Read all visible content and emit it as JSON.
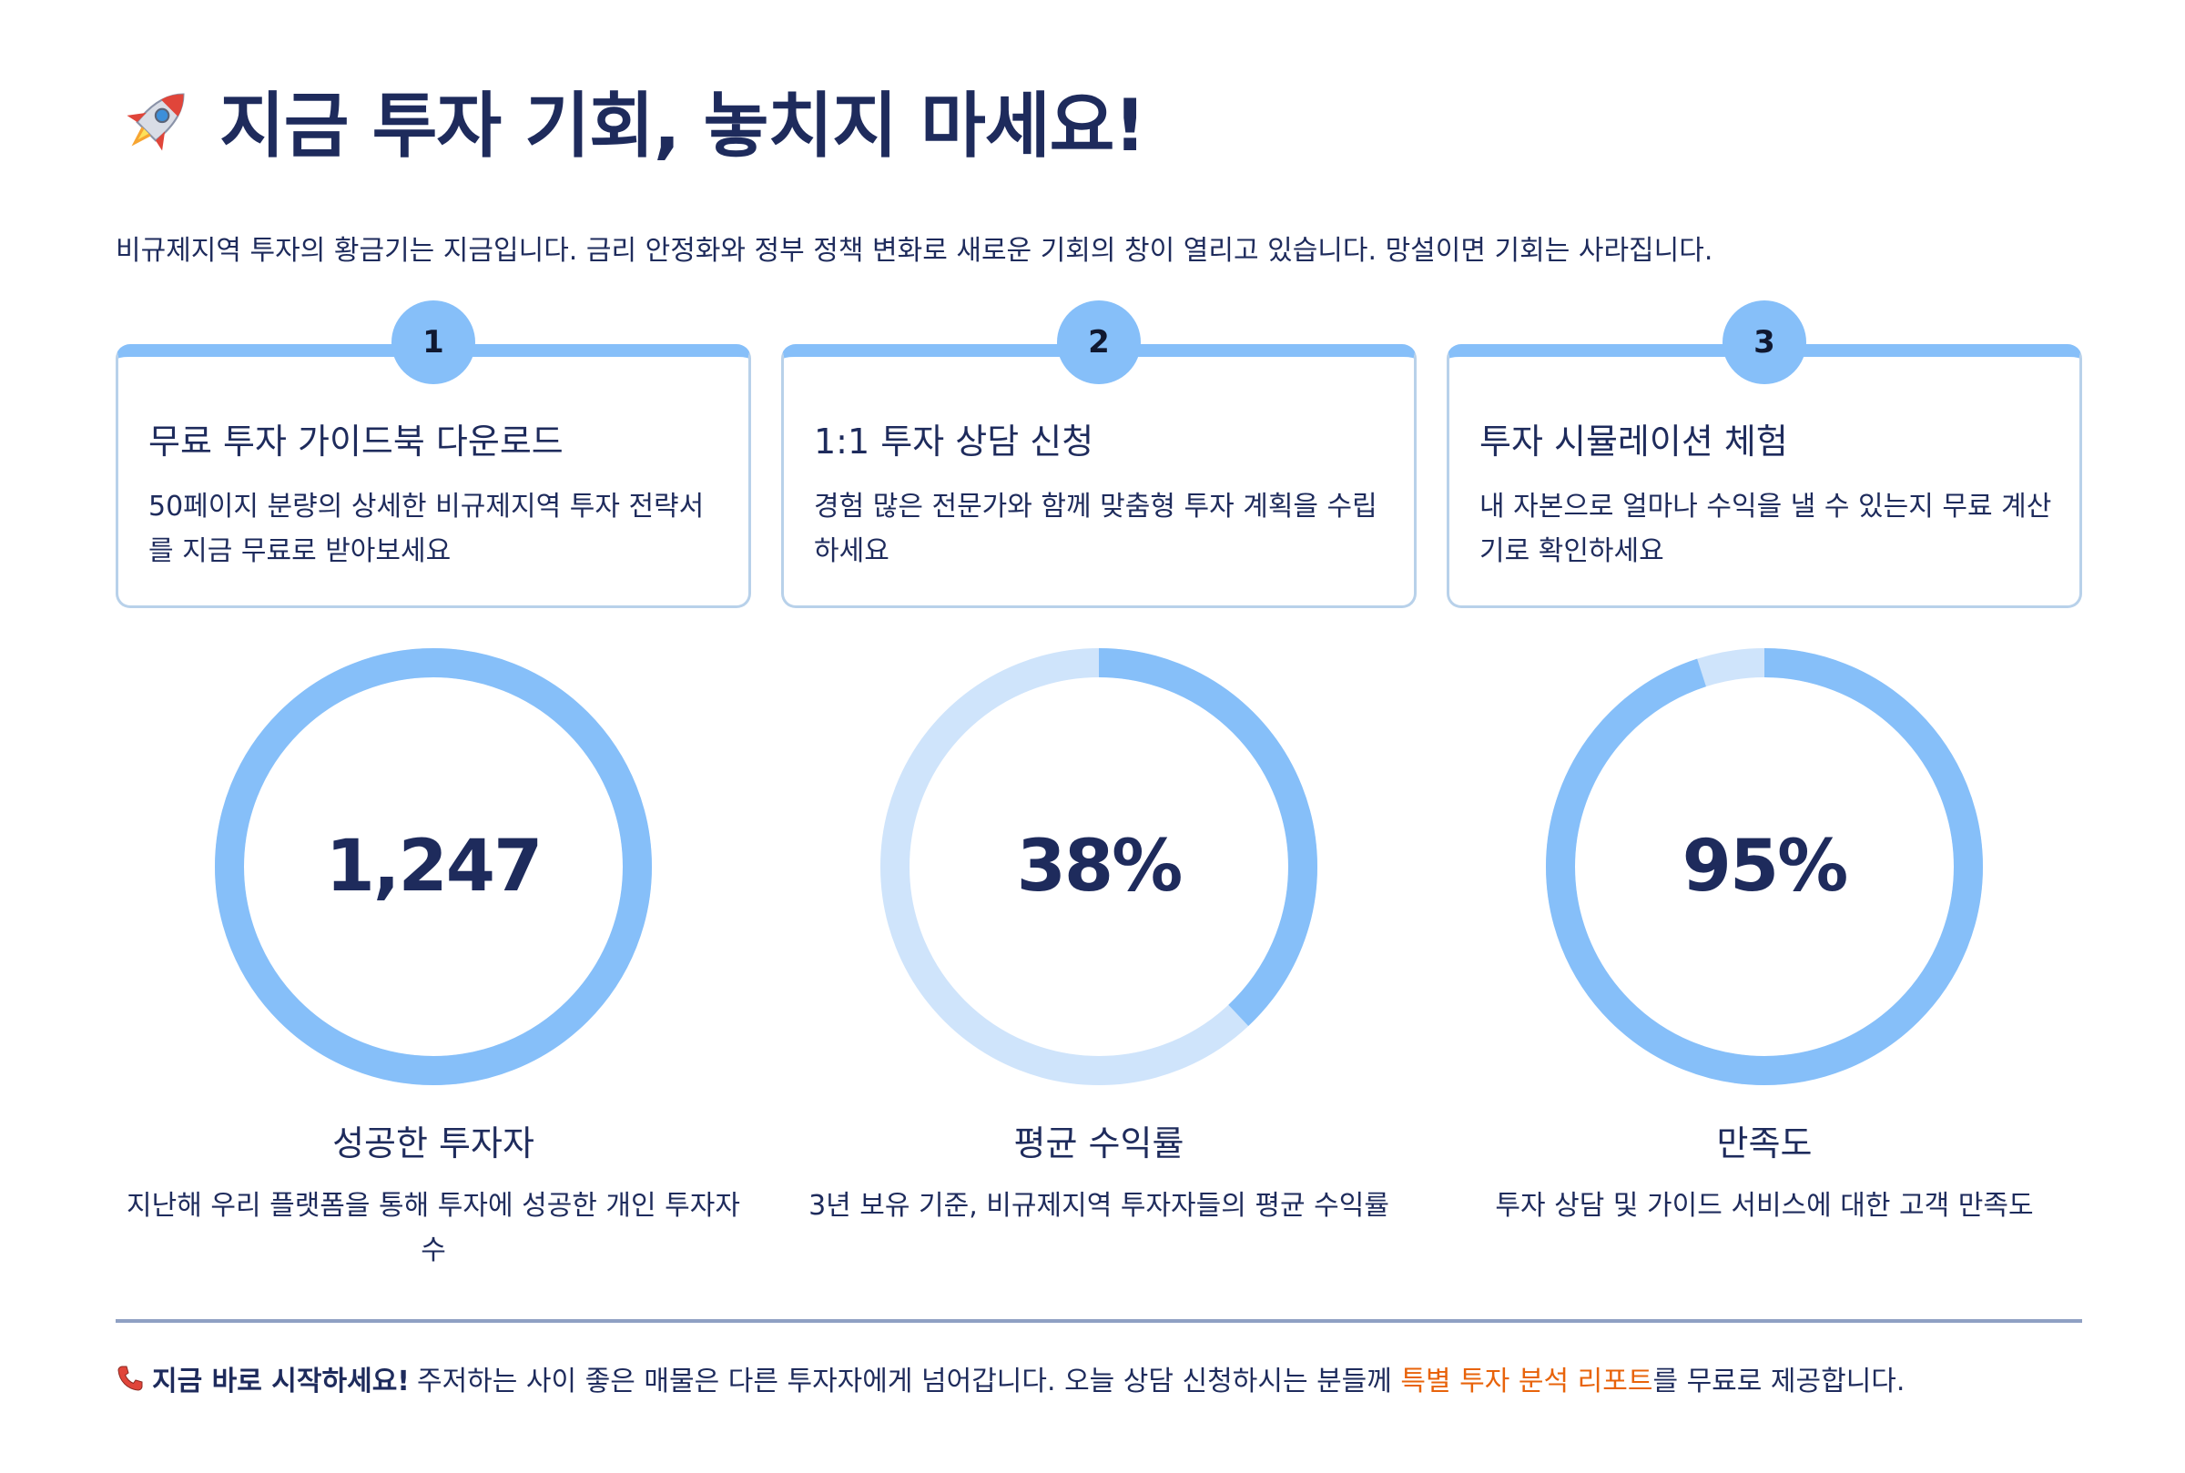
{
  "header": {
    "icon": "rocket-icon",
    "title": "지금 투자 기회, 놓치지 마세요!"
  },
  "intro": "비규제지역 투자의 황금기는 지금입니다. 금리 안정화와 정부 정책 변화로 새로운 기회의 창이 열리고 있습니다. 망설이면 기회는 사라집니다.",
  "steps": [
    {
      "number": "1",
      "title": "무료 투자 가이드북 다운로드",
      "description": "50페이지 분량의 상세한 비규제지역 투자 전략서를 지금 무료로 받아보세요"
    },
    {
      "number": "2",
      "title": "1:1 투자 상담 신청",
      "description": "경험 많은 전문가와 함께 맞춤형 투자 계획을 수립하세요"
    },
    {
      "number": "3",
      "title": "투자 시뮬레이션 체험",
      "description": "내 자본으로 얼마나 수익을 낼 수 있는지 무료 계산기로 확인하세요"
    }
  ],
  "stats": [
    {
      "value": "1,247",
      "fill": 1.0,
      "label": "성공한 투자자",
      "description": "지난해 우리 플랫폼을 통해 투자에 성공한 개인 투자자 수"
    },
    {
      "value": "38%",
      "fill": 0.38,
      "label": "평균 수익률",
      "description": "3년 보유 기준, 비규제지역 투자자들의 평균 수익률"
    },
    {
      "value": "95%",
      "fill": 0.95,
      "label": "만족도",
      "description": "투자 상담 및 가이드 서비스에 대한 고객 만족도"
    }
  ],
  "colors": {
    "ring_fill": "#86bff9",
    "ring_track": "#cfe4fb",
    "text": "#1e2b5c",
    "highlight": "#e8630a"
  },
  "footer": {
    "icon": "phone-icon",
    "strong": "지금 바로 시작하세요!",
    "text_before": "주저하는 사이 좋은 매물은 다른 투자자에게 넘어갑니다. 오늘 상담 신청하시는 분들께 ",
    "highlight": "특별 투자 분석 리포트",
    "text_after": "를 무료로 제공합니다."
  }
}
